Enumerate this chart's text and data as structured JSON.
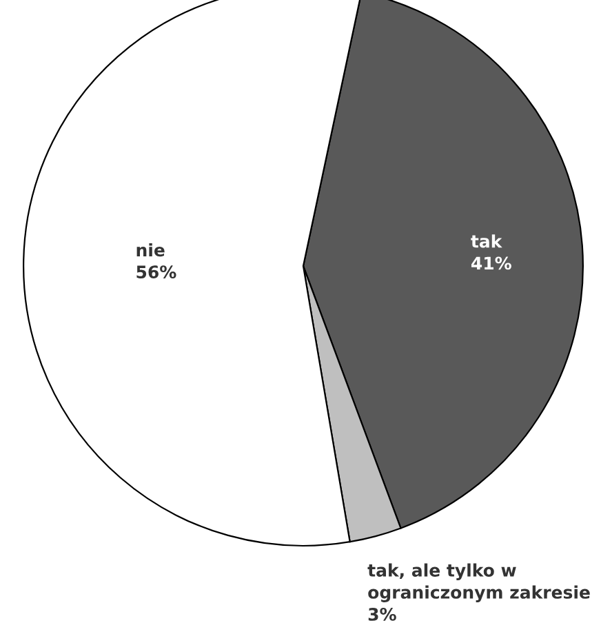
{
  "chart_data": {
    "type": "pie",
    "categories": [
      "tak",
      "tak, ale tylko w\nograniczonym zakresie",
      "nie"
    ],
    "values": [
      41,
      3,
      56
    ],
    "value_labels": [
      "41%",
      "3%",
      "56%"
    ],
    "colors": [
      "#595959",
      "#bfbfbf",
      "#ffffff"
    ]
  }
}
